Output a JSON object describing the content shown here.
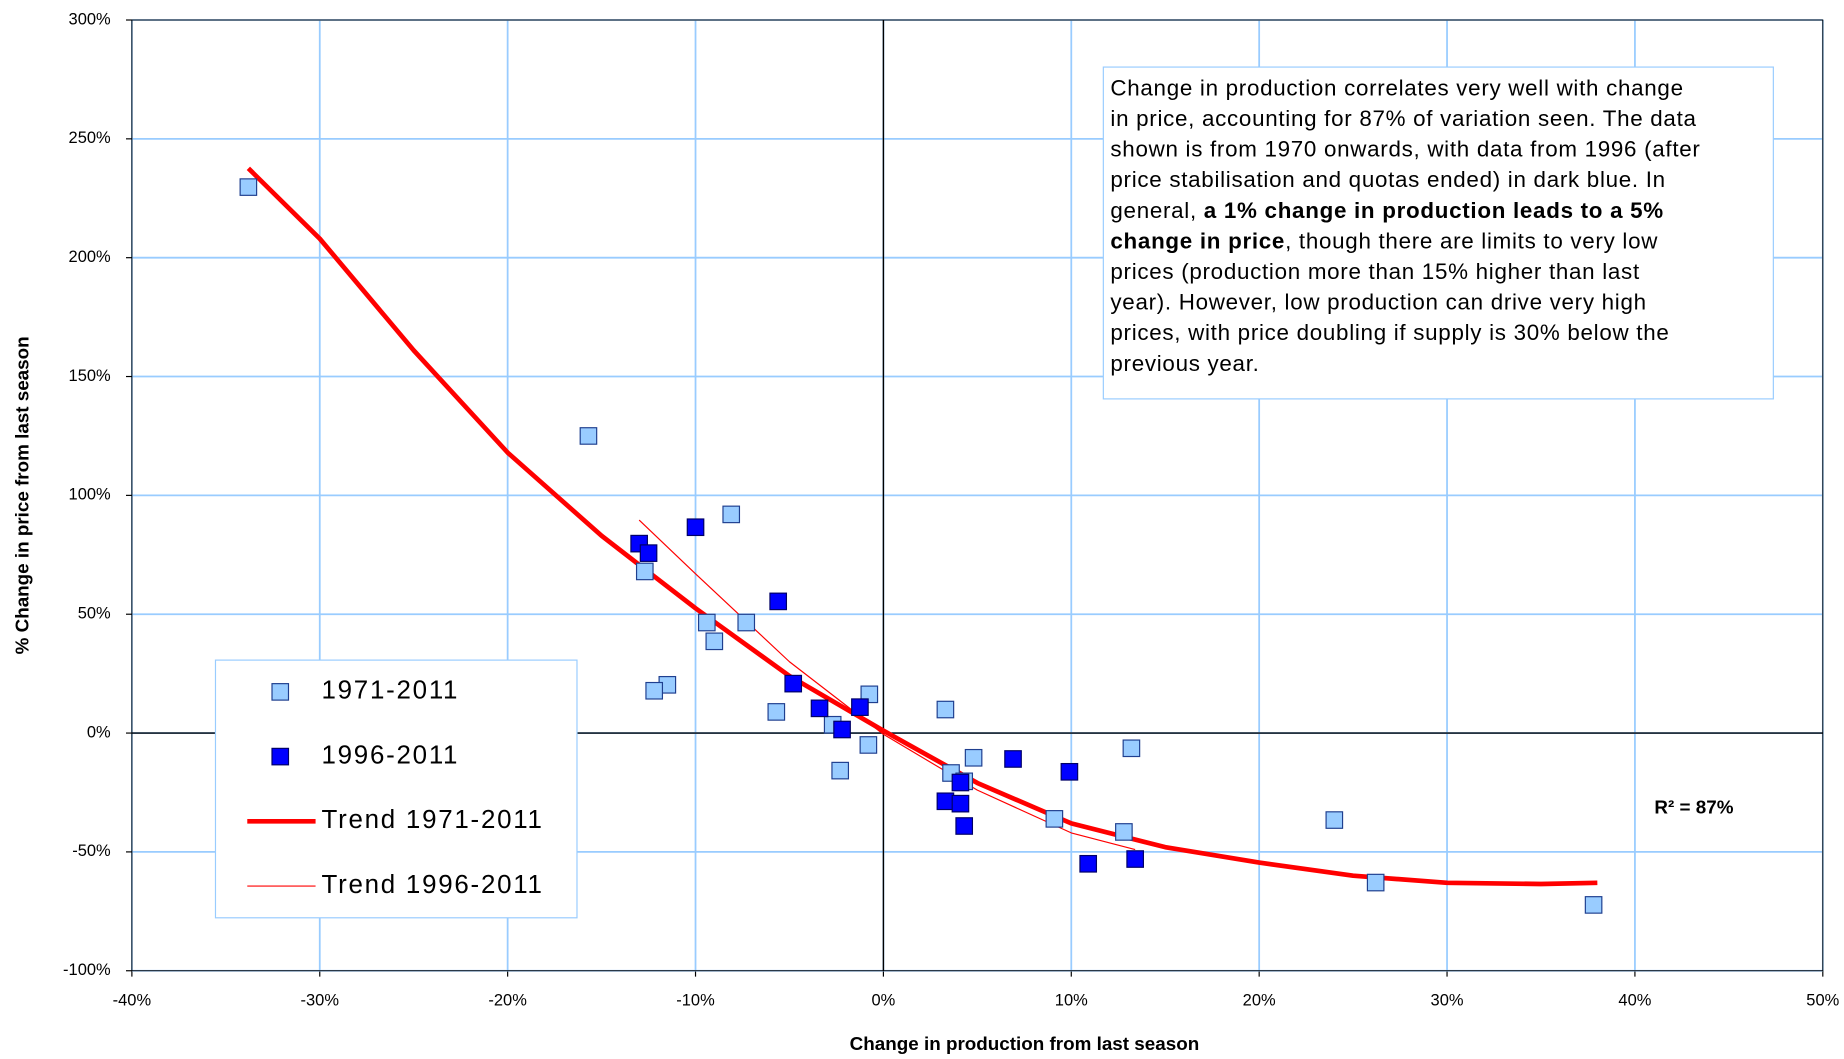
{
  "chart_data": {
    "type": "scatter",
    "xlabel": "Change in production from last season",
    "ylabel": "% Change in price from last season",
    "xlim": [
      -40,
      50
    ],
    "ylim": [
      -100,
      300
    ],
    "xticks": [
      {
        "value": -40,
        "label": "-40%"
      },
      {
        "value": -30,
        "label": "-30%"
      },
      {
        "value": -20,
        "label": "-20%"
      },
      {
        "value": -10,
        "label": "-10%"
      },
      {
        "value": 0,
        "label": "0%"
      },
      {
        "value": 10,
        "label": "10%"
      },
      {
        "value": 20,
        "label": "20%"
      },
      {
        "value": 30,
        "label": "30%"
      },
      {
        "value": 40,
        "label": "40%"
      },
      {
        "value": 50,
        "label": "50%"
      }
    ],
    "yticks": [
      {
        "value": -100,
        "label": "-100%"
      },
      {
        "value": -50,
        "label": "-50%"
      },
      {
        "value": 0,
        "label": "0%"
      },
      {
        "value": 50,
        "label": "50%"
      },
      {
        "value": 100,
        "label": "100%"
      },
      {
        "value": 150,
        "label": "150%"
      },
      {
        "value": 200,
        "label": "200%"
      },
      {
        "value": 250,
        "label": "250%"
      },
      {
        "value": 300,
        "label": "300%"
      }
    ],
    "grid": true,
    "series": [
      {
        "name": "1971-2011",
        "mode": "marker",
        "color": "#99ccff",
        "edge": "#1f3f8f",
        "x": [
          -33.8,
          -15.7,
          -8.1,
          -12.7,
          -9.4,
          -7.3,
          -9.0,
          -11.5,
          -12.2,
          -0.75,
          -5.7,
          -2.7,
          -0.8,
          -2.3,
          3.3,
          3.6,
          4.3,
          4.8,
          13.2,
          9.1,
          12.8,
          24.0,
          26.2,
          37.8
        ],
        "values": [
          229.7,
          125,
          92,
          68,
          46.5,
          46.5,
          38.6,
          20.3,
          17.8,
          16.3,
          8.9,
          3.5,
          -5,
          -15.8,
          9.9,
          -16.8,
          -20.3,
          -10.4,
          -6.4,
          -36.1,
          -41.6,
          -36.6,
          -62.9,
          -72.3
        ]
      },
      {
        "name": "1996-2011",
        "mode": "marker",
        "color": "#0000ff",
        "edge": "#000066",
        "x": [
          -13.0,
          -12.5,
          -10.0,
          -5.6,
          -4.8,
          -3.4,
          -2.2,
          -1.25,
          3.3,
          4.1,
          4.1,
          4.3,
          6.9,
          9.9,
          10.9,
          13.4
        ],
        "values": [
          79.7,
          75.7,
          86.6,
          55.4,
          20.8,
          10.4,
          1.5,
          10.9,
          -28.7,
          -20.8,
          -29.7,
          -39.1,
          -10.9,
          -16.3,
          -55,
          -53
        ]
      },
      {
        "name": "Trend 1971-2011",
        "mode": "line",
        "color": "#ff0000",
        "width": 4,
        "x": [
          -33.8,
          -30,
          -25,
          -20,
          -15,
          -10,
          -5,
          0,
          5,
          10,
          15,
          20,
          25,
          30,
          35,
          38
        ],
        "values": [
          237.6,
          208,
          161,
          118,
          83,
          52.5,
          24,
          1,
          -21,
          -38,
          -48,
          -54.5,
          -60,
          -63,
          -63.5,
          -63
        ]
      },
      {
        "name": "Trend 1996-2011",
        "mode": "line",
        "color": "#ff0000",
        "width": 1,
        "x": [
          -13,
          -10,
          -5,
          0,
          5,
          10,
          13.4
        ],
        "values": [
          89.6,
          67,
          30,
          -0.5,
          -24,
          -42,
          -49
        ]
      }
    ],
    "legend": "lower left",
    "r2_label": "R² = 87%",
    "annotation_lines": [
      [
        {
          "text": "Change in production correlates very well with change",
          "bold": false
        }
      ],
      [
        {
          "text": "in price, accounting for 87% of variation seen.  The data",
          "bold": false
        }
      ],
      [
        {
          "text": "shown is from 1970 onwards, with data from 1996 (after",
          "bold": false
        }
      ],
      [
        {
          "text": "price stabilisation and quotas ended) in dark blue.  In",
          "bold": false
        }
      ],
      [
        {
          "text": "general, ",
          "bold": false
        },
        {
          "text": "a 1% change in production leads to a 5%",
          "bold": true
        }
      ],
      [
        {
          "text": "change in price",
          "bold": true
        },
        {
          "text": ", though there are limits to very low",
          "bold": false
        }
      ],
      [
        {
          "text": "prices (production more than 15% higher than last",
          "bold": false
        }
      ],
      [
        {
          "text": "year).  However, low production can drive very high",
          "bold": false
        }
      ],
      [
        {
          "text": "prices, with price doubling if supply is 30% below the",
          "bold": false
        }
      ],
      [
        {
          "text": "previous year.",
          "bold": false
        }
      ]
    ]
  }
}
